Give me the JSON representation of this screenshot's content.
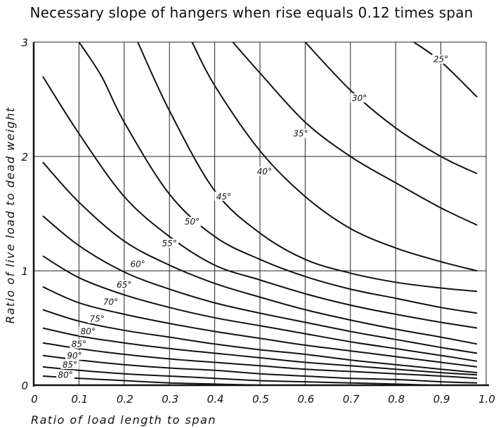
{
  "chart_data": {
    "type": "line",
    "title": "Necessary slope of hangers when rise equals 0.12 times span",
    "xlabel": "Ratio of load length to span",
    "ylabel": "Ratio of live load to dead weight",
    "xlim": [
      0,
      1.0
    ],
    "ylim": [
      0,
      3
    ],
    "x_ticks": [
      "0",
      "0.1",
      "0.2",
      "0.3",
      "0.4",
      "0.5",
      "0.6",
      "0.7",
      "0.8",
      "0.9",
      "1.0"
    ],
    "y_ticks": [
      "0",
      "1",
      "2",
      "3"
    ],
    "grid": true,
    "series": [
      {
        "name": "25°",
        "label_at": [
          0.9,
          2.83
        ],
        "points": [
          [
            0.84,
            3.0
          ],
          [
            0.9,
            2.83
          ],
          [
            0.98,
            2.52
          ]
        ]
      },
      {
        "name": "30°",
        "label_at": [
          0.72,
          2.49
        ],
        "points": [
          [
            0.6,
            3.0
          ],
          [
            0.7,
            2.58
          ],
          [
            0.8,
            2.25
          ],
          [
            0.9,
            2.0
          ],
          [
            0.98,
            1.85
          ]
        ]
      },
      {
        "name": "35°",
        "label_at": [
          0.59,
          2.18
        ],
        "points": [
          [
            0.44,
            3.0
          ],
          [
            0.5,
            2.73
          ],
          [
            0.6,
            2.3
          ],
          [
            0.7,
            2.0
          ],
          [
            0.8,
            1.77
          ],
          [
            0.9,
            1.55
          ],
          [
            0.98,
            1.4
          ]
        ]
      },
      {
        "name": "40°",
        "label_at": [
          0.51,
          1.85
        ],
        "points": [
          [
            0.35,
            3.0
          ],
          [
            0.4,
            2.62
          ],
          [
            0.5,
            2.05
          ],
          [
            0.6,
            1.65
          ],
          [
            0.7,
            1.37
          ],
          [
            0.8,
            1.2
          ],
          [
            0.9,
            1.08
          ],
          [
            0.98,
            1.0
          ]
        ]
      },
      {
        "name": "45°",
        "label_at": [
          0.42,
          1.63
        ],
        "points": [
          [
            0.23,
            3.0
          ],
          [
            0.3,
            2.4
          ],
          [
            0.4,
            1.7
          ],
          [
            0.5,
            1.33
          ],
          [
            0.6,
            1.1
          ],
          [
            0.7,
            0.98
          ],
          [
            0.8,
            0.9
          ],
          [
            0.9,
            0.85
          ],
          [
            0.98,
            0.82
          ]
        ]
      },
      {
        "name": "50°",
        "label_at": [
          0.35,
          1.41
        ],
        "points": [
          [
            0.1,
            3.0
          ],
          [
            0.15,
            2.7
          ],
          [
            0.2,
            2.3
          ],
          [
            0.3,
            1.67
          ],
          [
            0.4,
            1.3
          ],
          [
            0.5,
            1.1
          ],
          [
            0.6,
            0.95
          ],
          [
            0.7,
            0.84
          ],
          [
            0.8,
            0.76
          ],
          [
            0.9,
            0.68
          ],
          [
            0.98,
            0.63
          ]
        ]
      },
      {
        "name": "55°",
        "label_at": [
          0.3,
          1.22
        ],
        "points": [
          [
            0.02,
            2.7
          ],
          [
            0.1,
            2.2
          ],
          [
            0.2,
            1.65
          ],
          [
            0.3,
            1.3
          ],
          [
            0.4,
            1.05
          ],
          [
            0.5,
            0.92
          ],
          [
            0.6,
            0.8
          ],
          [
            0.7,
            0.7
          ],
          [
            0.8,
            0.62
          ],
          [
            0.9,
            0.55
          ],
          [
            0.98,
            0.5
          ]
        ]
      },
      {
        "name": "60°",
        "label_at": [
          0.23,
          1.04
        ],
        "points": [
          [
            0.02,
            1.95
          ],
          [
            0.1,
            1.6
          ],
          [
            0.2,
            1.26
          ],
          [
            0.3,
            1.05
          ],
          [
            0.4,
            0.89
          ],
          [
            0.5,
            0.77
          ],
          [
            0.6,
            0.66
          ],
          [
            0.7,
            0.57
          ],
          [
            0.8,
            0.49
          ],
          [
            0.9,
            0.42
          ],
          [
            0.98,
            0.36
          ]
        ]
      },
      {
        "name": "65°",
        "label_at": [
          0.2,
          0.86
        ],
        "points": [
          [
            0.02,
            1.48
          ],
          [
            0.1,
            1.22
          ],
          [
            0.2,
            0.99
          ],
          [
            0.3,
            0.84
          ],
          [
            0.4,
            0.72
          ],
          [
            0.5,
            0.63
          ],
          [
            0.6,
            0.55
          ],
          [
            0.7,
            0.47
          ],
          [
            0.8,
            0.4
          ],
          [
            0.9,
            0.33
          ],
          [
            0.98,
            0.28
          ]
        ]
      },
      {
        "name": "70°",
        "label_at": [
          0.17,
          0.71
        ],
        "points": [
          [
            0.02,
            1.13
          ],
          [
            0.1,
            0.94
          ],
          [
            0.2,
            0.79
          ],
          [
            0.3,
            0.68
          ],
          [
            0.4,
            0.59
          ],
          [
            0.5,
            0.52
          ],
          [
            0.6,
            0.45
          ],
          [
            0.7,
            0.38
          ],
          [
            0.8,
            0.32
          ],
          [
            0.9,
            0.26
          ],
          [
            0.98,
            0.21
          ]
        ]
      },
      {
        "name": "75°",
        "label_at": [
          0.14,
          0.56
        ],
        "points": [
          [
            0.02,
            0.86
          ],
          [
            0.1,
            0.72
          ],
          [
            0.2,
            0.62
          ],
          [
            0.3,
            0.54
          ],
          [
            0.4,
            0.47
          ],
          [
            0.5,
            0.41
          ],
          [
            0.6,
            0.35
          ],
          [
            0.7,
            0.3
          ],
          [
            0.8,
            0.25
          ],
          [
            0.9,
            0.2
          ],
          [
            0.98,
            0.16
          ]
        ]
      },
      {
        "name": "80°",
        "label_at": [
          0.12,
          0.45
        ],
        "points": [
          [
            0.02,
            0.66
          ],
          [
            0.1,
            0.56
          ],
          [
            0.2,
            0.48
          ],
          [
            0.3,
            0.42
          ],
          [
            0.4,
            0.36
          ],
          [
            0.5,
            0.31
          ],
          [
            0.6,
            0.27
          ],
          [
            0.7,
            0.22
          ],
          [
            0.8,
            0.18
          ],
          [
            0.9,
            0.14
          ],
          [
            0.98,
            0.11
          ]
        ]
      },
      {
        "name": "85°",
        "label_at": [
          0.1,
          0.34
        ],
        "points": [
          [
            0.02,
            0.5
          ],
          [
            0.1,
            0.43
          ],
          [
            0.2,
            0.37
          ],
          [
            0.3,
            0.32
          ],
          [
            0.4,
            0.28
          ],
          [
            0.5,
            0.24
          ],
          [
            0.6,
            0.2
          ],
          [
            0.7,
            0.17
          ],
          [
            0.8,
            0.14
          ],
          [
            0.9,
            0.11
          ],
          [
            0.98,
            0.09
          ]
        ]
      },
      {
        "name": "90°",
        "label_at": [
          0.09,
          0.24
        ],
        "points": [
          [
            0.02,
            0.37
          ],
          [
            0.1,
            0.32
          ],
          [
            0.2,
            0.27
          ],
          [
            0.3,
            0.23
          ],
          [
            0.4,
            0.2
          ],
          [
            0.5,
            0.17
          ],
          [
            0.6,
            0.14
          ],
          [
            0.7,
            0.12
          ],
          [
            0.8,
            0.1
          ],
          [
            0.9,
            0.08
          ],
          [
            0.98,
            0.06
          ]
        ]
      },
      {
        "name": "85°",
        "label_at": [
          0.08,
          0.16
        ],
        "points": [
          [
            0.02,
            0.26
          ],
          [
            0.1,
            0.22
          ],
          [
            0.2,
            0.18
          ],
          [
            0.3,
            0.15
          ],
          [
            0.4,
            0.13
          ],
          [
            0.5,
            0.1
          ],
          [
            0.6,
            0.08
          ],
          [
            0.7,
            0.06
          ],
          [
            0.8,
            0.05
          ],
          [
            0.9,
            0.03
          ],
          [
            0.98,
            0.02
          ]
        ]
      },
      {
        "name": "80°",
        "label_at": [
          0.07,
          0.07
        ],
        "points": [
          [
            0.02,
            0.16
          ],
          [
            0.1,
            0.13
          ],
          [
            0.2,
            0.1
          ],
          [
            0.3,
            0.08
          ],
          [
            0.4,
            0.06
          ],
          [
            0.5,
            0.04
          ],
          [
            0.6,
            0.03
          ],
          [
            0.7,
            0.02
          ],
          [
            0.8,
            0.01
          ],
          [
            0.88,
            0.0
          ]
        ]
      },
      {
        "name": "",
        "label_at": null,
        "points": [
          [
            0.02,
            0.08
          ],
          [
            0.1,
            0.06
          ],
          [
            0.2,
            0.04
          ],
          [
            0.3,
            0.02
          ],
          [
            0.4,
            0.01
          ],
          [
            0.5,
            0.0
          ]
        ]
      }
    ]
  }
}
